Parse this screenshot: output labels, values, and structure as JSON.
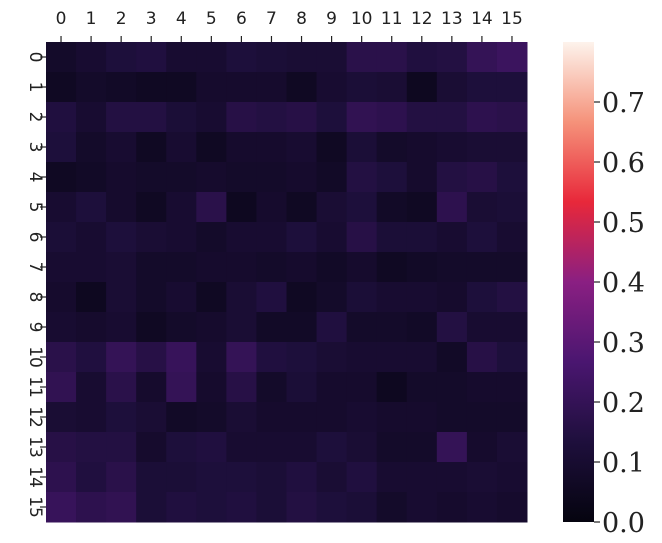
{
  "chart_data": {
    "type": "heatmap",
    "x_categories": [
      "0",
      "1",
      "2",
      "3",
      "4",
      "5",
      "6",
      "7",
      "8",
      "9",
      "10",
      "11",
      "12",
      "13",
      "14",
      "15"
    ],
    "y_categories": [
      "0",
      "1",
      "2",
      "3",
      "4",
      "5",
      "6",
      "7",
      "8",
      "9",
      "10",
      "11",
      "12",
      "13",
      "14",
      "15"
    ],
    "values": [
      [
        0.08,
        0.1,
        0.13,
        0.14,
        0.1,
        0.1,
        0.13,
        0.12,
        0.11,
        0.11,
        0.17,
        0.17,
        0.14,
        0.15,
        0.2,
        0.22
      ],
      [
        0.06,
        0.08,
        0.07,
        0.06,
        0.06,
        0.09,
        0.09,
        0.09,
        0.06,
        0.1,
        0.12,
        0.11,
        0.05,
        0.11,
        0.13,
        0.13
      ],
      [
        0.14,
        0.1,
        0.15,
        0.15,
        0.12,
        0.1,
        0.16,
        0.15,
        0.16,
        0.13,
        0.19,
        0.18,
        0.15,
        0.15,
        0.18,
        0.17
      ],
      [
        0.13,
        0.08,
        0.1,
        0.06,
        0.1,
        0.06,
        0.09,
        0.09,
        0.1,
        0.06,
        0.12,
        0.08,
        0.09,
        0.1,
        0.11,
        0.11
      ],
      [
        0.06,
        0.07,
        0.09,
        0.08,
        0.08,
        0.09,
        0.08,
        0.08,
        0.09,
        0.07,
        0.15,
        0.13,
        0.09,
        0.15,
        0.16,
        0.13
      ],
      [
        0.1,
        0.13,
        0.09,
        0.06,
        0.1,
        0.17,
        0.05,
        0.09,
        0.06,
        0.11,
        0.13,
        0.07,
        0.06,
        0.18,
        0.11,
        0.12
      ],
      [
        0.12,
        0.1,
        0.13,
        0.11,
        0.1,
        0.08,
        0.1,
        0.1,
        0.13,
        0.1,
        0.16,
        0.12,
        0.12,
        0.1,
        0.13,
        0.1
      ],
      [
        0.1,
        0.1,
        0.11,
        0.08,
        0.08,
        0.09,
        0.09,
        0.08,
        0.09,
        0.07,
        0.09,
        0.06,
        0.07,
        0.08,
        0.08,
        0.08
      ],
      [
        0.09,
        0.05,
        0.11,
        0.08,
        0.1,
        0.06,
        0.11,
        0.14,
        0.06,
        0.08,
        0.12,
        0.1,
        0.1,
        0.09,
        0.13,
        0.15
      ],
      [
        0.1,
        0.09,
        0.1,
        0.06,
        0.08,
        0.09,
        0.11,
        0.07,
        0.07,
        0.14,
        0.08,
        0.08,
        0.07,
        0.15,
        0.1,
        0.1
      ],
      [
        0.17,
        0.14,
        0.2,
        0.16,
        0.21,
        0.1,
        0.2,
        0.14,
        0.13,
        0.11,
        0.1,
        0.1,
        0.1,
        0.07,
        0.16,
        0.13
      ],
      [
        0.19,
        0.1,
        0.17,
        0.09,
        0.2,
        0.09,
        0.16,
        0.08,
        0.12,
        0.09,
        0.09,
        0.05,
        0.08,
        0.08,
        0.09,
        0.09
      ],
      [
        0.11,
        0.1,
        0.13,
        0.11,
        0.07,
        0.08,
        0.11,
        0.09,
        0.09,
        0.09,
        0.1,
        0.09,
        0.09,
        0.08,
        0.08,
        0.08
      ],
      [
        0.16,
        0.15,
        0.15,
        0.09,
        0.13,
        0.14,
        0.1,
        0.1,
        0.1,
        0.13,
        0.11,
        0.08,
        0.08,
        0.2,
        0.09,
        0.11
      ],
      [
        0.18,
        0.14,
        0.17,
        0.12,
        0.12,
        0.13,
        0.13,
        0.12,
        0.14,
        0.11,
        0.14,
        0.1,
        0.1,
        0.1,
        0.11,
        0.1
      ],
      [
        0.21,
        0.18,
        0.19,
        0.12,
        0.14,
        0.13,
        0.14,
        0.12,
        0.15,
        0.13,
        0.12,
        0.08,
        0.1,
        0.09,
        0.1,
        0.09
      ]
    ],
    "zlim": [
      0,
      0.8
    ],
    "zticks": [
      {
        "value": 0,
        "label": "0.0"
      },
      0.1,
      0.2,
      0.3,
      0.4,
      0.5,
      0.6,
      0.7
    ],
    "colormap": [
      "#05040f",
      "#1e0f3c",
      "#4a1670",
      "#8a1f82",
      "#e8283a",
      "#f5927a",
      "#fdf3ec"
    ]
  }
}
